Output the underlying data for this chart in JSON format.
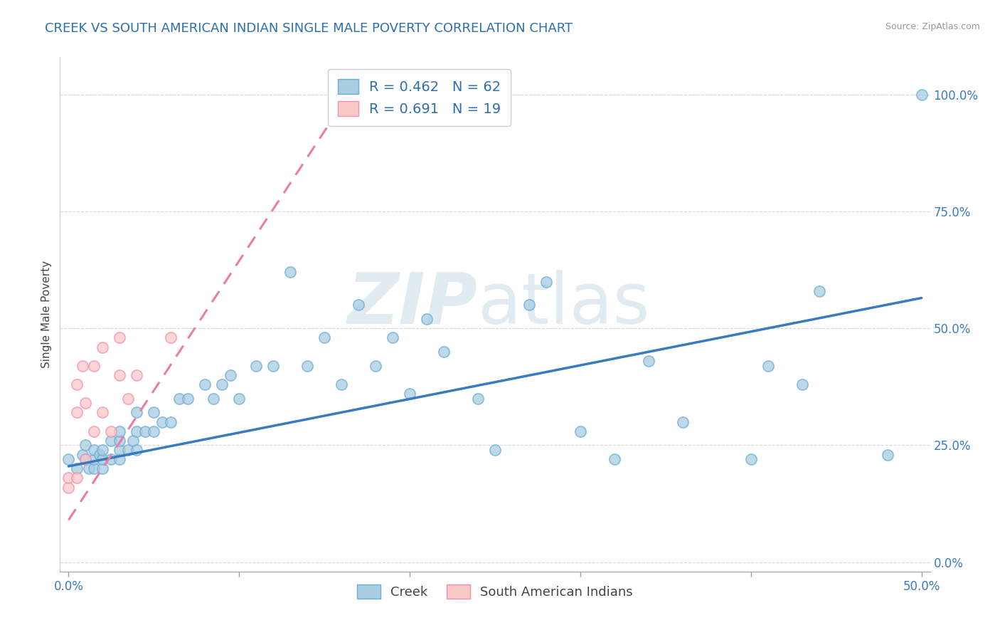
{
  "title": "CREEK VS SOUTH AMERICAN INDIAN SINGLE MALE POVERTY CORRELATION CHART",
  "source": "Source: ZipAtlas.com",
  "ylabel": "Single Male Poverty",
  "watermark": "ZIPatlas",
  "xlim": [
    -0.005,
    0.505
  ],
  "ylim": [
    -0.02,
    1.08
  ],
  "xticks": [
    0.0,
    0.1,
    0.2,
    0.3,
    0.4,
    0.5
  ],
  "xtick_labels": [
    "0.0%",
    "",
    "",
    "",
    "",
    "50.0%"
  ],
  "ytick_vals_right": [
    0.0,
    0.25,
    0.5,
    0.75,
    1.0
  ],
  "ytick_labels_right": [
    "0.0%",
    "25.0%",
    "50.0%",
    "75.0%",
    "100.0%"
  ],
  "creek_R": 0.462,
  "creek_N": 62,
  "sa_R": 0.691,
  "sa_N": 19,
  "creek_color": "#a8cce0",
  "creek_edge_color": "#6baed6",
  "sa_color": "#fbc8c8",
  "sa_edge_color": "#f48fb1",
  "creek_line_color": "#3a7abf",
  "sa_line_color": "#e87ea0",
  "title_color": "#2c6fad",
  "legend_text_color": "#2c6fad",
  "creek_x": [
    0.0,
    0.005,
    0.008,
    0.01,
    0.01,
    0.012,
    0.015,
    0.015,
    0.015,
    0.018,
    0.02,
    0.02,
    0.02,
    0.025,
    0.025,
    0.03,
    0.03,
    0.03,
    0.03,
    0.035,
    0.038,
    0.04,
    0.04,
    0.04,
    0.045,
    0.05,
    0.05,
    0.055,
    0.06,
    0.065,
    0.07,
    0.08,
    0.085,
    0.09,
    0.095,
    0.1,
    0.11,
    0.12,
    0.13,
    0.14,
    0.15,
    0.16,
    0.17,
    0.18,
    0.19,
    0.2,
    0.21,
    0.22,
    0.24,
    0.25,
    0.27,
    0.28,
    0.3,
    0.32,
    0.34,
    0.36,
    0.4,
    0.41,
    0.43,
    0.44,
    0.48,
    0.5
  ],
  "creek_y": [
    0.22,
    0.2,
    0.23,
    0.22,
    0.25,
    0.2,
    0.2,
    0.22,
    0.24,
    0.23,
    0.2,
    0.22,
    0.24,
    0.22,
    0.26,
    0.22,
    0.24,
    0.26,
    0.28,
    0.24,
    0.26,
    0.24,
    0.28,
    0.32,
    0.28,
    0.28,
    0.32,
    0.3,
    0.3,
    0.35,
    0.35,
    0.38,
    0.35,
    0.38,
    0.4,
    0.35,
    0.42,
    0.42,
    0.62,
    0.42,
    0.48,
    0.38,
    0.55,
    0.42,
    0.48,
    0.36,
    0.52,
    0.45,
    0.35,
    0.24,
    0.55,
    0.6,
    0.28,
    0.22,
    0.43,
    0.3,
    0.22,
    0.42,
    0.38,
    0.58,
    0.23,
    1.0
  ],
  "sa_x": [
    0.0,
    0.0,
    0.005,
    0.005,
    0.005,
    0.008,
    0.01,
    0.01,
    0.015,
    0.015,
    0.02,
    0.02,
    0.025,
    0.03,
    0.03,
    0.035,
    0.04,
    0.06,
    0.16
  ],
  "sa_y": [
    0.16,
    0.18,
    0.18,
    0.32,
    0.38,
    0.42,
    0.22,
    0.34,
    0.28,
    0.42,
    0.32,
    0.46,
    0.28,
    0.4,
    0.48,
    0.35,
    0.4,
    0.48,
    0.97
  ],
  "creek_trend_x": [
    0.0,
    0.5
  ],
  "creek_trend_y": [
    0.205,
    0.565
  ],
  "sa_trend_x0": 0.0,
  "sa_trend_x1": 0.175,
  "sa_trend_y0": 0.09,
  "sa_trend_y1": 1.06
}
